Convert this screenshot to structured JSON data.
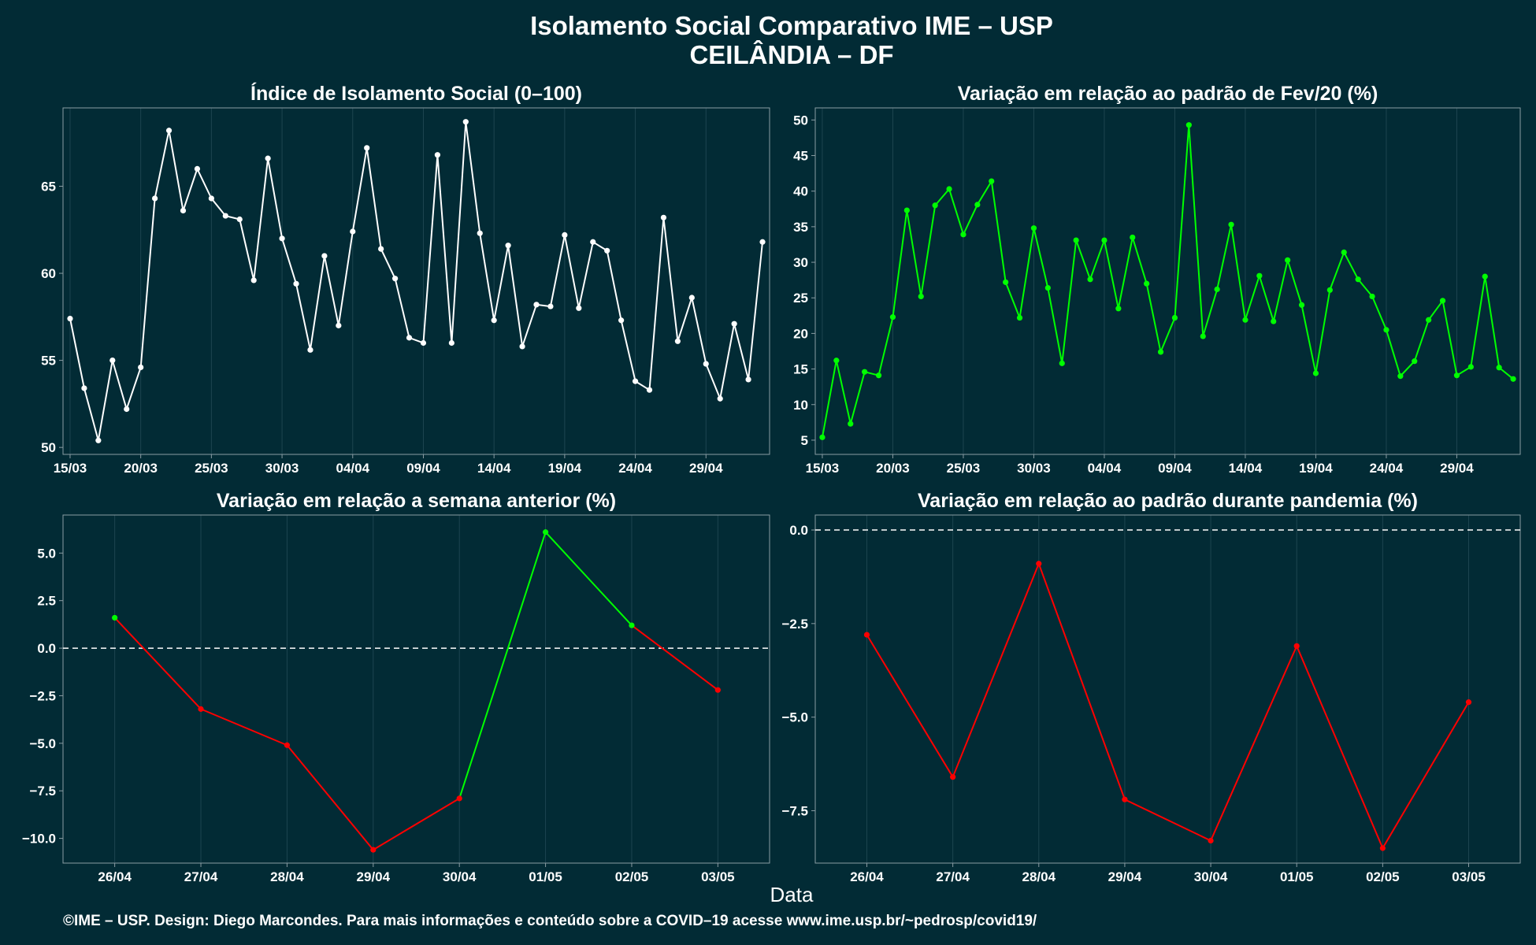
{
  "title_line1": "Isolamento Social Comparativo IME – USP",
  "title_line2": "CEILÂNDIA – DF",
  "xlabel": "Data",
  "footer": "©IME – USP. Design: Diego Marcondes. Para mais informações e conteúdo sobre a COVID–19 acesse www.ime.usp.br/~pedrosp/covid19/",
  "colors": {
    "background": "#022b35",
    "white": "#ffffff",
    "green": "#00ff00",
    "red": "#ff0000",
    "grid": "#1d4550",
    "frame": "#8a9ca3"
  },
  "chart_data": [
    {
      "type": "line",
      "title": "Índice de Isolamento Social (0–100)",
      "x_tick_labels": [
        "15/03",
        "20/03",
        "25/03",
        "30/03",
        "04/04",
        "09/04",
        "14/04",
        "19/04",
        "24/04",
        "29/04"
      ],
      "x_tick_positions": [
        0,
        5,
        10,
        15,
        20,
        25,
        30,
        35,
        40,
        45
      ],
      "x_range": [
        -0.5,
        49.5
      ],
      "yticks": [
        50,
        55,
        60,
        65
      ],
      "ylim": [
        49.6,
        69.5
      ],
      "series": [
        {
          "color": "#ffffff",
          "values": [
            57.4,
            53.4,
            50.4,
            55.0,
            52.2,
            54.6,
            64.3,
            68.2,
            63.6,
            66.0,
            64.3,
            63.3,
            63.1,
            59.6,
            66.6,
            62.0,
            59.4,
            55.6,
            61.0,
            57.0,
            62.4,
            67.2,
            61.4,
            59.7,
            56.3,
            56.0,
            66.8,
            56.0,
            68.7,
            62.3,
            57.3,
            61.6,
            55.8,
            58.2,
            58.1,
            62.2,
            58.0,
            61.8,
            61.3,
            57.3,
            53.8,
            53.3,
            63.2,
            56.1,
            58.6,
            54.8,
            52.8,
            57.1,
            53.9,
            61.8
          ]
        }
      ]
    },
    {
      "type": "line",
      "title": "Variação em relação ao padrão de Fev/20 (%)",
      "x_tick_labels": [
        "15/03",
        "20/03",
        "25/03",
        "30/03",
        "04/04",
        "09/04",
        "14/04",
        "19/04",
        "24/04",
        "29/04"
      ],
      "x_tick_positions": [
        0,
        5,
        10,
        15,
        20,
        25,
        30,
        35,
        40,
        45
      ],
      "x_range": [
        -0.5,
        49.5
      ],
      "yticks": [
        5,
        10,
        15,
        20,
        25,
        30,
        35,
        40,
        45,
        50
      ],
      "ylim": [
        3.0,
        51.7
      ],
      "series": [
        {
          "color": "#00ff00",
          "values": [
            5.4,
            16.2,
            7.3,
            14.6,
            14.1,
            22.3,
            37.3,
            25.2,
            38.0,
            40.3,
            33.9,
            38.1,
            41.4,
            27.2,
            22.2,
            34.8,
            26.4,
            15.8,
            33.1,
            27.6,
            33.1,
            23.5,
            33.5,
            27.0,
            17.4,
            22.2,
            49.3,
            19.6,
            26.2,
            35.3,
            21.9,
            28.1,
            21.7,
            30.3,
            24.0,
            14.4,
            26.1,
            31.4,
            27.6,
            25.2,
            20.5,
            14.0,
            16.1,
            21.9,
            24.6,
            14.1,
            15.3,
            28.0,
            15.2,
            13.6
          ]
        }
      ]
    },
    {
      "type": "line",
      "title": "Variação em relação a semana anterior (%)",
      "categories": [
        "26/04",
        "27/04",
        "28/04",
        "29/04",
        "30/04",
        "01/05",
        "02/05",
        "03/05"
      ],
      "yticks": [
        -10.0,
        -7.5,
        -5.0,
        -2.5,
        0.0,
        2.5,
        5.0
      ],
      "ylim": [
        -11.3,
        7.0
      ],
      "reference_line": 0,
      "series": [
        {
          "values": [
            1.6,
            -3.2,
            -5.1,
            -10.6,
            -7.9,
            6.1,
            1.2,
            -2.2
          ],
          "positive_color": "#00ff00",
          "negative_color": "#ff0000"
        }
      ]
    },
    {
      "type": "line",
      "title": "Variação em relação ao padrão durante pandemia (%)",
      "categories": [
        "26/04",
        "27/04",
        "28/04",
        "29/04",
        "30/04",
        "01/05",
        "02/05",
        "03/05"
      ],
      "yticks": [
        -7.5,
        -5.0,
        -2.5,
        0.0
      ],
      "ylim": [
        -8.9,
        0.4
      ],
      "reference_line": 0,
      "series": [
        {
          "values": [
            -2.8,
            -6.6,
            -0.9,
            -7.2,
            -8.3,
            -3.1,
            -8.5,
            -4.6
          ],
          "positive_color": "#00ff00",
          "negative_color": "#ff0000"
        }
      ]
    }
  ]
}
